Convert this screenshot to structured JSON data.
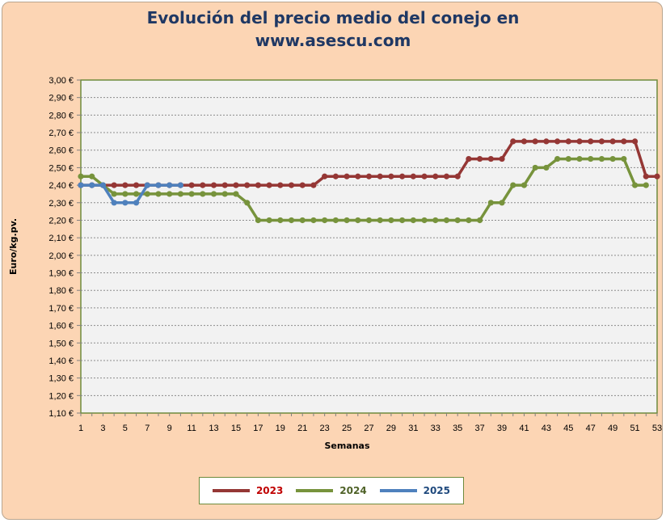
{
  "title_line1": "Evolución del precio medio del conejo en",
  "title_line2": "www.asescu.com",
  "chart_data": {
    "type": "line",
    "title": "Evolución del precio medio del conejo en www.asescu.com",
    "xlabel": "Semanas",
    "ylabel": "Euro/kg.pv.",
    "xlim": [
      1,
      53
    ],
    "ylim": [
      1.1,
      3.0
    ],
    "y_tick_step": 0.1,
    "x_tick_labels": [
      "1",
      "3",
      "5",
      "7",
      "9",
      "11",
      "13",
      "15",
      "17",
      "19",
      "21",
      "23",
      "25",
      "27",
      "29",
      "31",
      "33",
      "35",
      "37",
      "39",
      "41",
      "43",
      "45",
      "47",
      "49",
      "51",
      "53"
    ],
    "y_tick_labels": [
      "1,10 €",
      "1,20 €",
      "1,30 €",
      "1,40 €",
      "1,50 €",
      "1,60 €",
      "1,70 €",
      "1,80 €",
      "1,90 €",
      "2,00 €",
      "2,10 €",
      "2,20 €",
      "2,30 €",
      "2,40 €",
      "2,50 €",
      "2,60 €",
      "2,70 €",
      "2,80 €",
      "2,90 €",
      "3,00 €"
    ],
    "grid": true,
    "legend_position": "bottom",
    "series": [
      {
        "name": "2023",
        "color": "#953735",
        "x": [
          1,
          2,
          3,
          4,
          5,
          6,
          7,
          8,
          9,
          10,
          11,
          12,
          13,
          14,
          15,
          16,
          17,
          18,
          19,
          20,
          21,
          22,
          23,
          24,
          25,
          26,
          27,
          28,
          29,
          30,
          31,
          32,
          33,
          34,
          35,
          36,
          37,
          38,
          39,
          40,
          41,
          42,
          43,
          44,
          45,
          46,
          47,
          48,
          49,
          50,
          51,
          52,
          53
        ],
        "values": [
          2.4,
          2.4,
          2.4,
          2.4,
          2.4,
          2.4,
          2.4,
          2.4,
          2.4,
          2.4,
          2.4,
          2.4,
          2.4,
          2.4,
          2.4,
          2.4,
          2.4,
          2.4,
          2.4,
          2.4,
          2.4,
          2.4,
          2.45,
          2.45,
          2.45,
          2.45,
          2.45,
          2.45,
          2.45,
          2.45,
          2.45,
          2.45,
          2.45,
          2.45,
          2.45,
          2.55,
          2.55,
          2.55,
          2.55,
          2.65,
          2.65,
          2.65,
          2.65,
          2.65,
          2.65,
          2.65,
          2.65,
          2.65,
          2.65,
          2.65,
          2.65,
          2.45,
          2.45
        ]
      },
      {
        "name": "2024",
        "color": "#77933c",
        "x": [
          1,
          2,
          3,
          4,
          5,
          6,
          7,
          8,
          9,
          10,
          11,
          12,
          13,
          14,
          15,
          16,
          17,
          18,
          19,
          20,
          21,
          22,
          23,
          24,
          25,
          26,
          27,
          28,
          29,
          30,
          31,
          32,
          33,
          34,
          35,
          36,
          37,
          38,
          39,
          40,
          41,
          42,
          43,
          44,
          45,
          46,
          47,
          48,
          49,
          50,
          51,
          52
        ],
        "values": [
          2.45,
          2.45,
          2.4,
          2.35,
          2.35,
          2.35,
          2.35,
          2.35,
          2.35,
          2.35,
          2.35,
          2.35,
          2.35,
          2.35,
          2.35,
          2.3,
          2.2,
          2.2,
          2.2,
          2.2,
          2.2,
          2.2,
          2.2,
          2.2,
          2.2,
          2.2,
          2.2,
          2.2,
          2.2,
          2.2,
          2.2,
          2.2,
          2.2,
          2.2,
          2.2,
          2.2,
          2.2,
          2.3,
          2.3,
          2.4,
          2.4,
          2.5,
          2.5,
          2.55,
          2.55,
          2.55,
          2.55,
          2.55,
          2.55,
          2.55,
          2.4,
          2.4
        ]
      },
      {
        "name": "2025",
        "color": "#4f81bd",
        "x": [
          1,
          2,
          3,
          4,
          5,
          6,
          7,
          8,
          9,
          10
        ],
        "values": [
          2.4,
          2.4,
          2.4,
          2.3,
          2.3,
          2.3,
          2.4,
          2.4,
          2.4,
          2.4
        ]
      }
    ],
    "connector": {
      "color": "#e46c0a",
      "from": [
        3,
        2.4
      ],
      "to": [
        4,
        2.35
      ]
    }
  },
  "legend": [
    {
      "label": "2023",
      "color": "#953735"
    },
    {
      "label": "2024",
      "color": "#77933c"
    },
    {
      "label": "2025",
      "color": "#4f81bd"
    }
  ]
}
